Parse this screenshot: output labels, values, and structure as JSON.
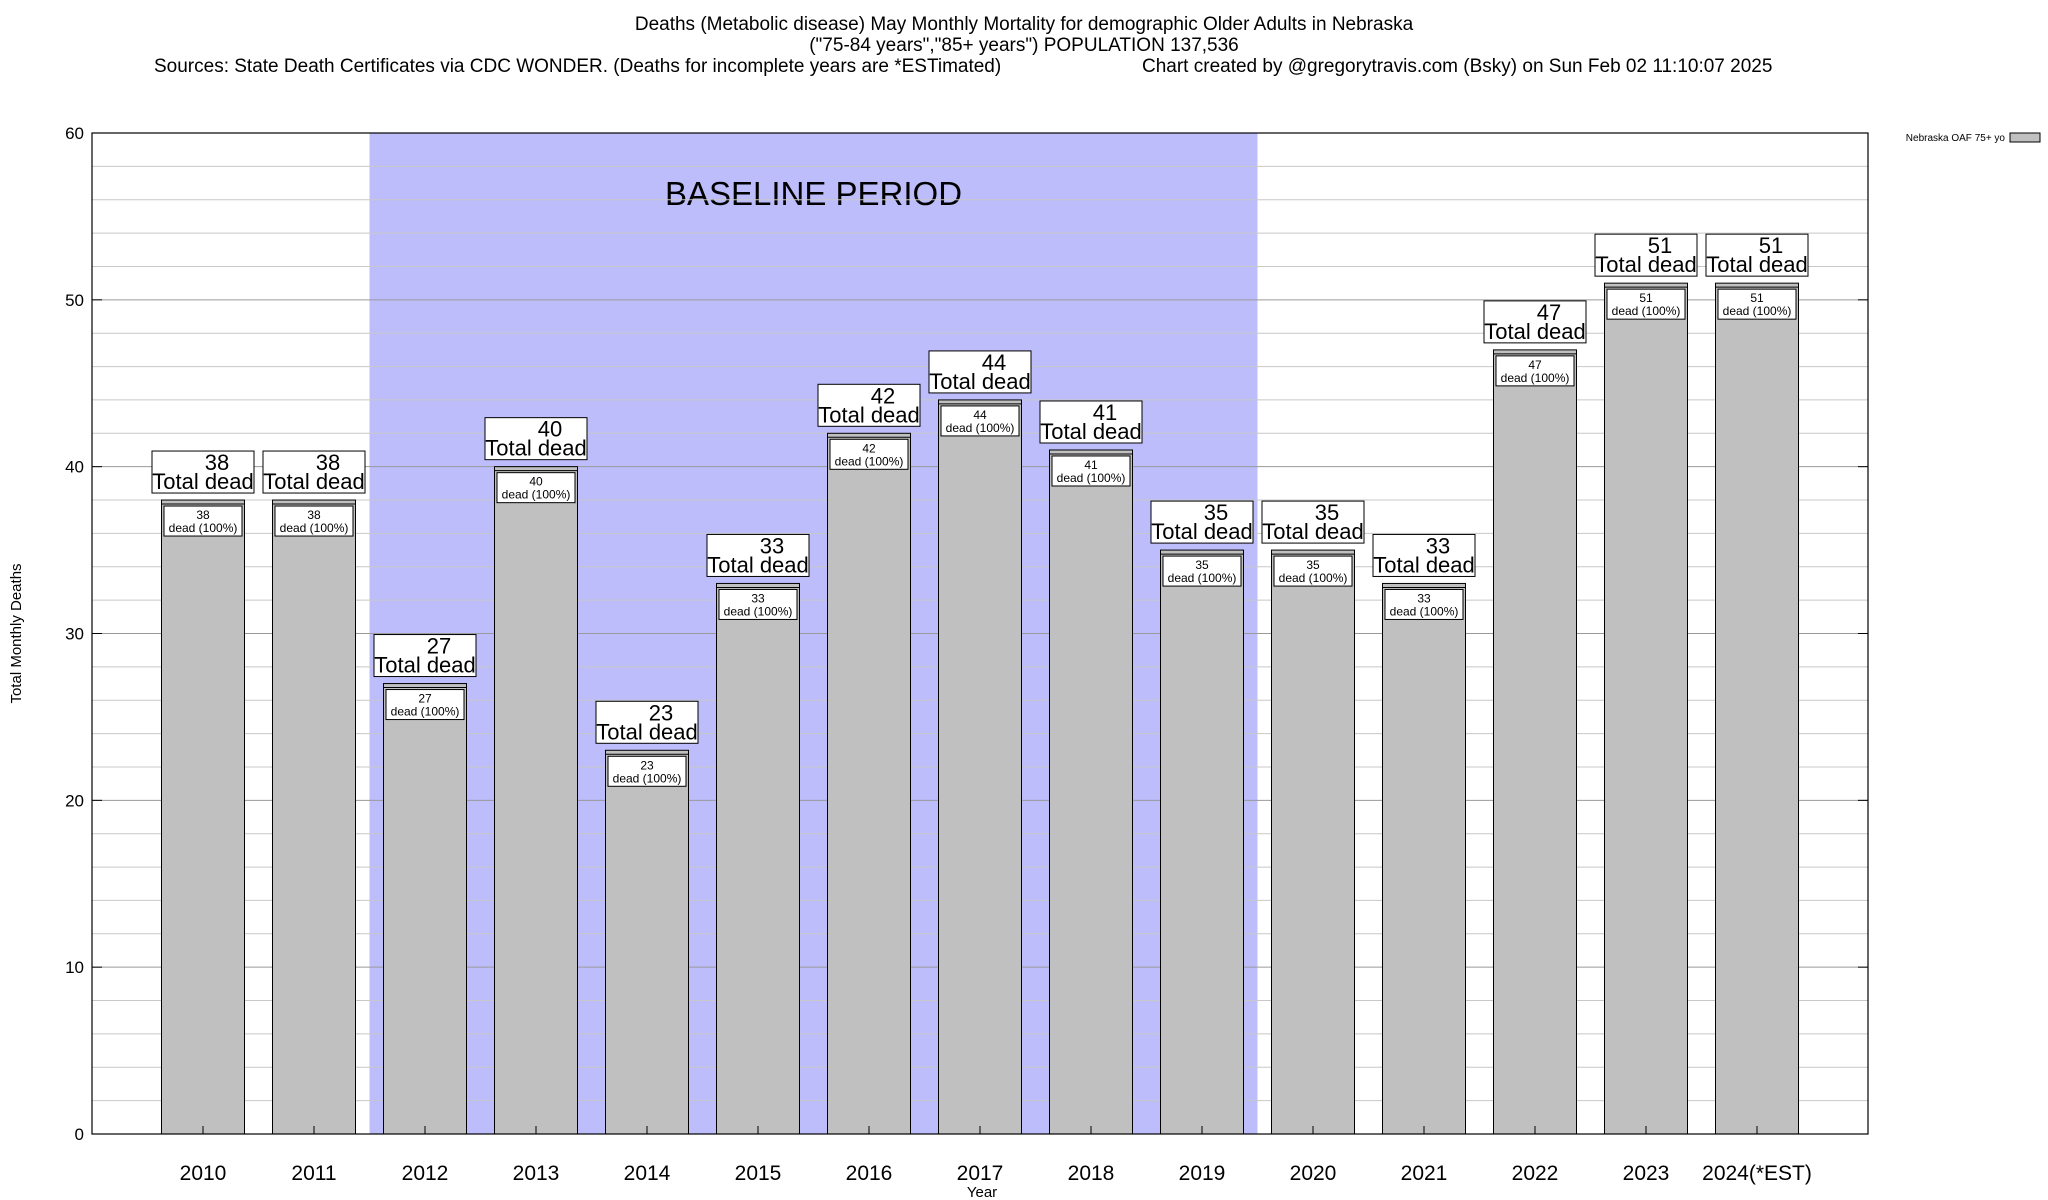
{
  "header": {
    "title_line1": "Deaths (Metabolic disease) May Monthly Mortality for demographic Older Adults in Nebraska",
    "title_line2": "(\"75-84 years\",\"85+ years\") POPULATION 137,536",
    "sources": "Sources: State Death Certificates via CDC WONDER. (Deaths for incomplete years are *ESTimated)",
    "credit": "Chart created by @gregorytravis.com (Bsky) on Sun Feb 02 11:10:07 2025"
  },
  "chart_data": {
    "type": "bar",
    "title": "Deaths (Metabolic disease) May Monthly Mortality for demographic Older Adults in Nebraska",
    "xlabel": "Year",
    "ylabel": "Total Monthly Deaths",
    "ylim": [
      0,
      60
    ],
    "yticks": [
      0,
      10,
      20,
      30,
      40,
      50,
      60
    ],
    "grid": true,
    "categories": [
      "2010",
      "2011",
      "2012",
      "2013",
      "2014",
      "2015",
      "2016",
      "2017",
      "2018",
      "2019",
      "2020",
      "2021",
      "2022",
      "2023",
      "2024(*EST)"
    ],
    "series": [
      {
        "name": "Nebraska OAF 75+ yo",
        "values": [
          38,
          38,
          27,
          40,
          23,
          33,
          42,
          44,
          41,
          35,
          35,
          33,
          47,
          51,
          51
        ],
        "color": "#c0c0c0"
      }
    ],
    "label_top_suffix": "Total dead",
    "label_inner_suffix": "dead (100%)",
    "baseline": {
      "label": "BASELINE PERIOD",
      "start": "2012",
      "end": "2019",
      "color": "#bdbdfc"
    },
    "legend": {
      "position": "top-right",
      "entries": [
        "Nebraska OAF 75+ yo"
      ]
    }
  }
}
